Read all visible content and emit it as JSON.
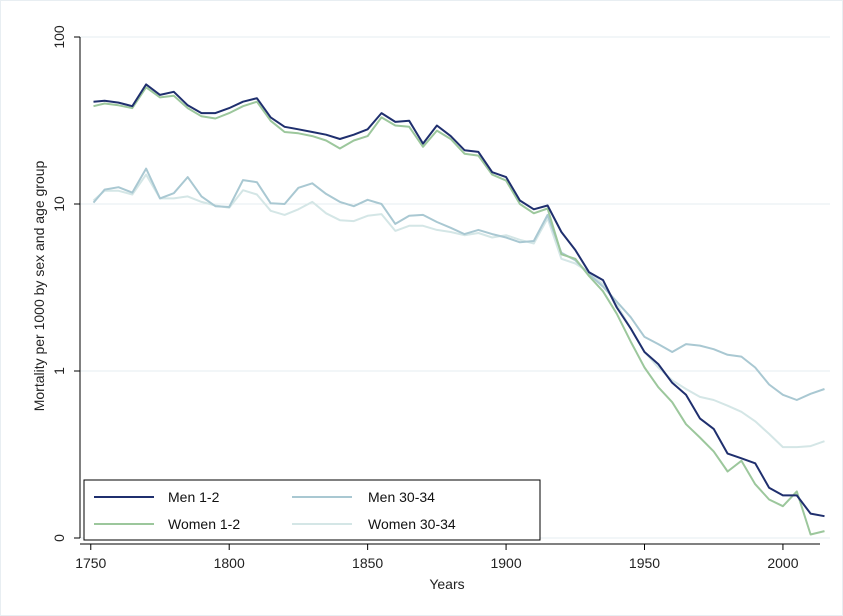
{
  "chart_data": {
    "type": "line",
    "title": "",
    "xlabel": "Years",
    "ylabel": "Mortality per 1000 by sex and age group",
    "y_scale": "log",
    "xlim": [
      1750,
      2016
    ],
    "x_ticks": [
      1750,
      1800,
      1850,
      1900,
      1950,
      2000
    ],
    "x_tick_labels": [
      "1750",
      "1800",
      "1850",
      "1900",
      "1950",
      "2000"
    ],
    "y_ticks": [
      0.1,
      1,
      10,
      100
    ],
    "y_tick_labels": [
      "0",
      "1",
      "10",
      "100"
    ],
    "grid": "horizontal",
    "legend_position": "bottom-left",
    "x": [
      1751,
      1755,
      1760,
      1765,
      1770,
      1775,
      1780,
      1785,
      1790,
      1795,
      1800,
      1805,
      1810,
      1815,
      1820,
      1825,
      1830,
      1835,
      1840,
      1845,
      1850,
      1855,
      1860,
      1865,
      1870,
      1875,
      1880,
      1885,
      1890,
      1895,
      1900,
      1905,
      1910,
      1915,
      1920,
      1925,
      1930,
      1935,
      1940,
      1945,
      1950,
      1955,
      1960,
      1965,
      1970,
      1975,
      1980,
      1985,
      1990,
      1995,
      2000,
      2005,
      2010,
      2015
    ],
    "series": [
      {
        "name": "Men 1-2",
        "color": "#1f2f6e",
        "values": [
          41,
          41.5,
          40.5,
          38.5,
          52,
          45,
          47,
          39,
          35,
          35,
          37.5,
          41,
          43,
          33,
          29,
          28,
          27,
          26,
          24.5,
          26,
          28,
          35,
          31,
          31.5,
          23,
          29.5,
          25.5,
          21,
          20.5,
          15.5,
          14.5,
          10.5,
          9.3,
          9.8,
          6.8,
          5.3,
          3.9,
          3.5,
          2.4,
          1.8,
          1.3,
          1.1,
          0.85,
          0.72,
          0.52,
          0.45,
          0.32,
          0.3,
          0.28,
          0.2,
          0.18,
          0.18,
          0.14,
          0.135
        ]
      },
      {
        "name": "Women 1-2",
        "color": "#9cc79c",
        "values": [
          38.5,
          40,
          39,
          37.5,
          50,
          43.5,
          44.5,
          37.5,
          33.5,
          32.5,
          35,
          38.5,
          41,
          31.5,
          27,
          26.5,
          25.5,
          24,
          21.5,
          24,
          25.5,
          33,
          29.5,
          29,
          22,
          27.5,
          24.5,
          20,
          19.5,
          15,
          13.8,
          10,
          8.8,
          9.4,
          5,
          4.7,
          3.7,
          3,
          2.2,
          1.5,
          1.05,
          0.8,
          0.65,
          0.48,
          0.4,
          0.33,
          0.25,
          0.29,
          0.21,
          0.17,
          0.155,
          0.19,
          0.105,
          0.11
        ]
      },
      {
        "name": "Men 30-34",
        "color": "#a9c8d2",
        "values": [
          10.2,
          12.2,
          12.6,
          11.7,
          16.3,
          10.8,
          11.6,
          14.5,
          11.1,
          9.7,
          9.6,
          13.9,
          13.5,
          10.1,
          10,
          12.5,
          13.3,
          11.5,
          10.3,
          9.7,
          10.6,
          10,
          7.6,
          8.5,
          8.6,
          7.8,
          7.2,
          6.6,
          7,
          6.6,
          6.3,
          5.9,
          6,
          8.6,
          5.1,
          4.6,
          3.8,
          3.2,
          2.6,
          2.1,
          1.6,
          1.45,
          1.3,
          1.45,
          1.42,
          1.35,
          1.25,
          1.22,
          1.05,
          0.83,
          0.72,
          0.67,
          0.73,
          0.78
        ]
      },
      {
        "name": "Women 30-34",
        "color": "#d4e6e6",
        "values": [
          10.5,
          12,
          12,
          11.4,
          15,
          10.8,
          10.8,
          11.1,
          10.3,
          9.8,
          9.5,
          12.1,
          11.4,
          9.1,
          8.6,
          9.3,
          10.3,
          8.8,
          8,
          7.9,
          8.5,
          8.7,
          6.9,
          7.4,
          7.4,
          7,
          6.8,
          6.5,
          6.7,
          6.3,
          6.5,
          6.1,
          5.8,
          8.2,
          4.7,
          4.4,
          3.9,
          3.3,
          2.5,
          1.8,
          1.3,
          1.05,
          0.88,
          0.78,
          0.7,
          0.67,
          0.62,
          0.57,
          0.5,
          0.42,
          0.35,
          0.35,
          0.355,
          0.38
        ]
      }
    ]
  }
}
